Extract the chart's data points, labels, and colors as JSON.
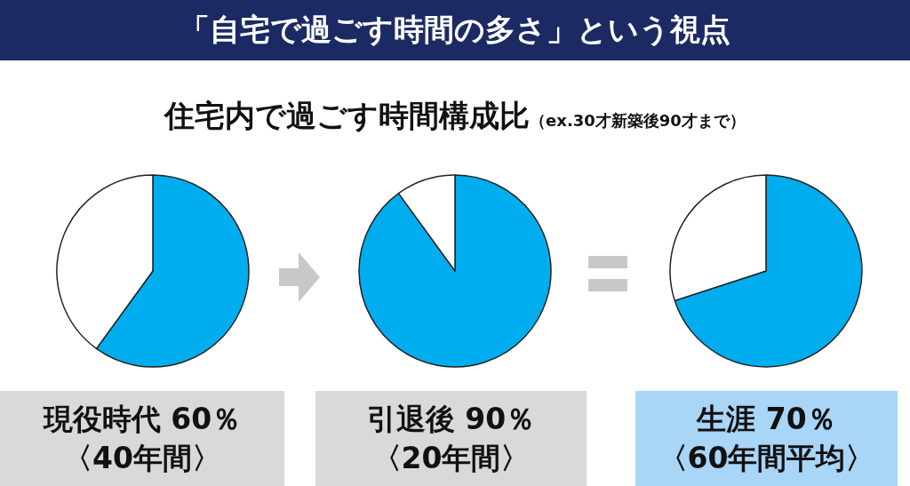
{
  "chart_data": [
    {
      "type": "pie",
      "title": "「自宅で過ごす時間の多さ」という視点",
      "subtitle": "住宅内で過ごす時間構成比（ex.30才新築後90才まで）",
      "categories": [
        null,
        null
      ],
      "values": [
        60,
        40
      ],
      "colors": [
        "#00adef",
        "#ffffff"
      ],
      "annotations": [
        "現役時代 60％",
        "〈40年間〉"
      ]
    },
    {
      "type": "pie",
      "categories": [
        null,
        null
      ],
      "values": [
        90,
        10
      ],
      "colors": [
        "#00adef",
        "#ffffff"
      ],
      "annotations": [
        "引退後 90％",
        "〈20年間〉"
      ]
    },
    {
      "type": "pie",
      "categories": [
        null,
        null
      ],
      "values": [
        70,
        30
      ],
      "colors": [
        "#00adef",
        "#ffffff"
      ],
      "annotations": [
        "生涯 70％",
        "〈60年間平均〉"
      ]
    }
  ]
}
